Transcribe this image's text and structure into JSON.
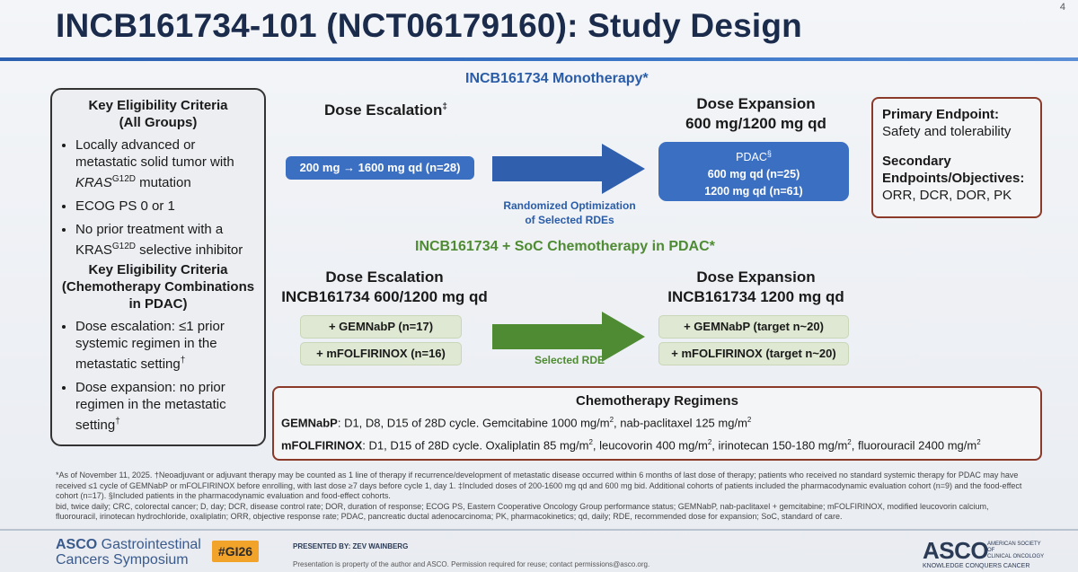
{
  "page": {
    "title": "INCB161734-101 (NCT06179160): Study Design",
    "page_number": "4"
  },
  "eligibility": {
    "head1_line1": "Key Eligibility Criteria",
    "head1_line2": "(All Groups)",
    "all_groups": [
      {
        "pre": "Locally advanced or metastatic solid tumor with ",
        "gene": "KRAS",
        "sup": "G12D",
        "post": " mutation"
      },
      {
        "pre": "ECOG PS 0 or 1",
        "gene": "",
        "sup": "",
        "post": ""
      },
      {
        "pre": "No prior treatment with a ",
        "gene": "KRAS",
        "sup": "G12D",
        "post": " selective inhibitor"
      }
    ],
    "head2_line1": "Key Eligibility Criteria",
    "head2_line2": "(Chemotherapy Combinations",
    "head2_line3": "in PDAC)",
    "chemo_groups": [
      {
        "text": "Dose escalation: ≤1 prior systemic regimen in the metastatic setting",
        "sup": "†"
      },
      {
        "text": "Dose expansion: no prior regimen in the metastatic setting",
        "sup": "†"
      }
    ]
  },
  "mono": {
    "heading": "INCB161734 Monotherapy*",
    "escalation_label": "Dose Escalation",
    "escalation_sup": "‡",
    "escalation_pill": "200 mg → 1600 mg qd (n=28)",
    "arrow_label_1": "Randomized Optimization",
    "arrow_label_2": "of Selected RDEs",
    "expansion_label_1": "Dose Expansion",
    "expansion_label_2": "600 mg/1200 mg qd",
    "expansion_pill_1": "PDAC",
    "expansion_pill_1_sup": "§",
    "expansion_pill_2": "600 mg qd (n=25)",
    "expansion_pill_3": "1200 mg qd (n=61)"
  },
  "combo": {
    "heading": "INCB161734 + SoC Chemotherapy in PDAC*",
    "escalation_label_1": "Dose Escalation",
    "escalation_label_2": "INCB161734 600/1200 mg qd",
    "escalation_arms": [
      "+ GEMNabP (n=17)",
      "+ mFOLFIRINOX (n=16)"
    ],
    "arrow_label": "Selected RDE",
    "expansion_label_1": "Dose Expansion",
    "expansion_label_2": "INCB161734 1200 mg qd",
    "expansion_arms": [
      "+ GEMNabP (target n~20)",
      "+ mFOLFIRINOX (target n~20)"
    ]
  },
  "endpoints": {
    "primary_title": "Primary Endpoint:",
    "primary_text": "Safety and tolerability",
    "secondary_title_1": "Secondary",
    "secondary_title_2": "Endpoints/Objectives:",
    "secondary_text": "ORR, DCR, DOR, PK"
  },
  "chemo": {
    "title": "Chemotherapy Regimens",
    "gem_name": "GEMNabP",
    "gem_a": ": D1, D8, D15 of 28D cycle. Gemcitabine 1000 mg/m",
    "gem_b": ", nab-paclitaxel 125 mg/m",
    "mfol_name": "mFOLFIRINOX",
    "mfol_a": ": D1, D15 of 28D cycle. Oxaliplatin 85 mg/m",
    "mfol_b": ", leucovorin 400 mg/m",
    "mfol_c": ", irinotecan 150-180 mg/m",
    "mfol_d": ", fluorouracil 2400 mg/m",
    "sq": "2"
  },
  "footnotes": {
    "line1": "*As of November 11, 2025. †Neoadjuvant or adjuvant therapy may be counted as 1 line of therapy if recurrence/development of metastatic disease occurred within 6 months of last dose of therapy; patients who received no standard systemic therapy for PDAC may have received ≤1 cycle of GEMNabP or mFOLFIRINOX before enrolling, with last dose ≥7 days before cycle 1, day 1. ‡Included doses of 200-1600 mg qd and 600 mg bid. Additional cohorts of patients included the pharmacodynamic evaluation cohort (n=9) and the food-effect cohort (n=17). §Included patients in the pharmacodynamic evaluation and food-effect cohorts.",
    "line2": "bid, twice daily; CRC, colorectal cancer; D, day; DCR, disease control rate; DOR, duration of response; ECOG PS, Eastern Cooperative Oncology Group performance status; GEMNabP, nab-paclitaxel + gemcitabine; mFOLFIRINOX, modified leucovorin calcium, fluorouracil, irinotecan hydrochloride, oxaliplatin; ORR, objective response rate; PDAC, pancreatic ductal adenocarcinoma; PK, pharmacokinetics; qd, daily; RDE, recommended dose for expansion; SoC, standard of care."
  },
  "footer": {
    "asco_left_1": "ASCO",
    "asco_left_2": " Gastrointestinal",
    "asco_left_3": "Cancers Symposium",
    "hashtag": "#GI26",
    "presented_by": "PRESENTED BY: ZEV WAINBERG",
    "property_note": "Presentation is property of the author and ASCO. Permission required for reuse; contact permissions@asco.org.",
    "asco_right": "ASCO",
    "asco_right_sub_1": "AMERICAN SOCIETY OF",
    "asco_right_sub_2": "CLINICAL ONCOLOGY",
    "asco_right_tagline": "KNOWLEDGE CONQUERS CANCER"
  },
  "colors": {
    "title": "#1a2b4c",
    "blue": "#3b6fc2",
    "green": "#4e8b33",
    "box_border": "#8b3a2a",
    "hashtag_bg": "#f2a32a"
  }
}
